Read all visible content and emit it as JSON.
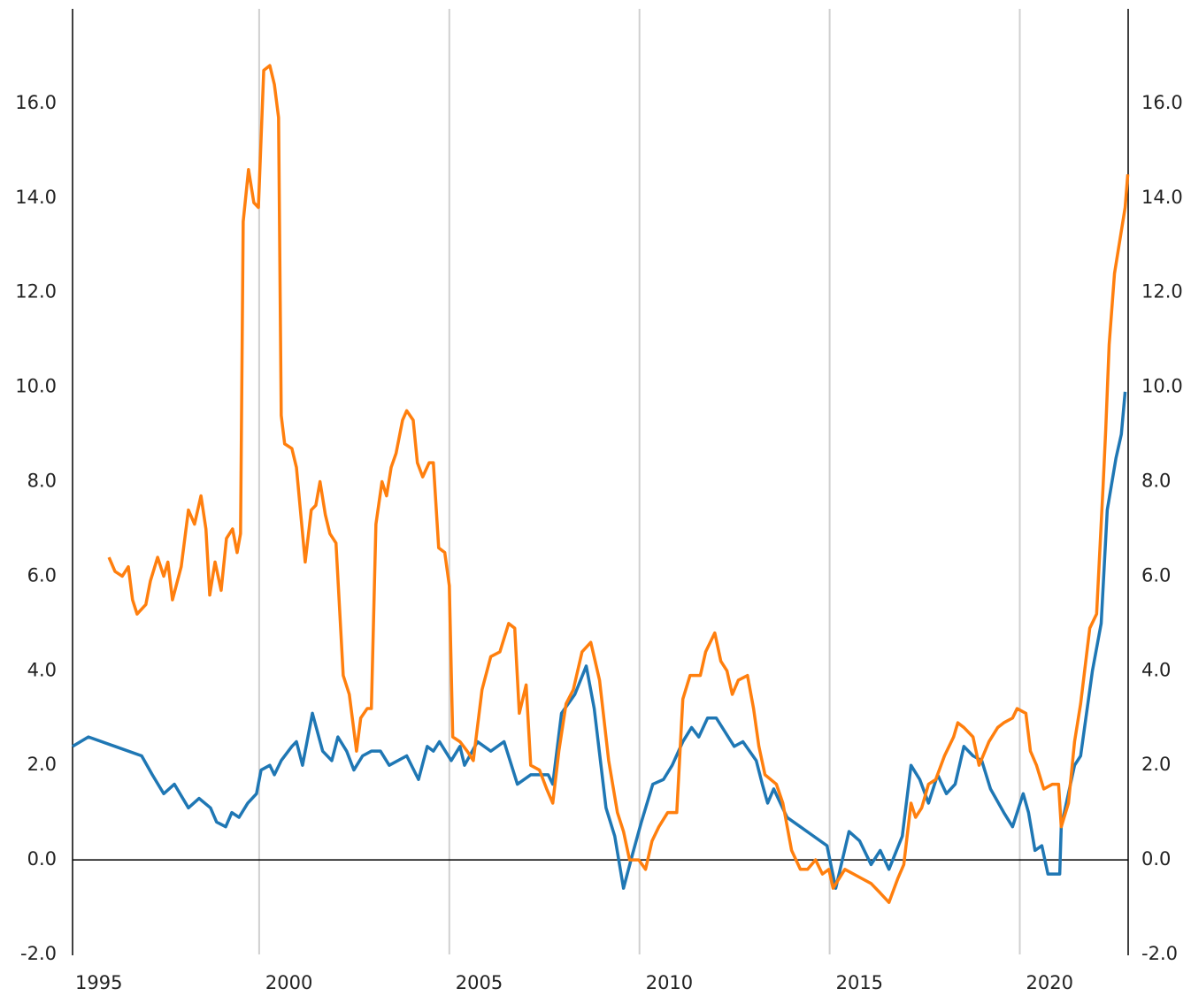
{
  "chart_data": {
    "type": "line",
    "xlim": [
      1995,
      2022.85
    ],
    "xticks": [
      1995,
      2000,
      2005,
      2010,
      2015,
      2020
    ],
    "ylim": [
      -2,
      18
    ],
    "yticks": [
      {
        "value": -2,
        "label": "-2.0"
      },
      {
        "value": 0,
        "label": "0.0"
      },
      {
        "value": 2,
        "label": "2.0"
      },
      {
        "value": 4,
        "label": "4.0"
      },
      {
        "value": 6,
        "label": "6.0"
      },
      {
        "value": 8,
        "label": "8.0"
      },
      {
        "value": 10,
        "label": "10.0"
      },
      {
        "value": 12,
        "label": "12.0"
      },
      {
        "value": 14,
        "label": "14.0"
      },
      {
        "value": 16,
        "label": "16.0"
      }
    ],
    "grid": true,
    "series": [
      {
        "color": "#1f77b4",
        "x": [
          1995.09,
          1995.51,
          1996.21,
          1996.91,
          1997.19,
          1997.49,
          1997.77,
          1998.14,
          1998.42,
          1998.72,
          1998.88,
          1999.12,
          1999.28,
          1999.47,
          1999.7,
          1999.93,
          2000.05,
          2000.28,
          2000.4,
          2000.58,
          2000.86,
          2000.98,
          2001.14,
          2001.4,
          2001.67,
          2001.91,
          2002.07,
          2002.3,
          2002.49,
          2002.72,
          2002.95,
          2003.19,
          2003.42,
          2003.88,
          2004.19,
          2004.42,
          2004.58,
          2004.74,
          2005.05,
          2005.28,
          2005.4,
          2005.74,
          2006.09,
          2006.44,
          2006.79,
          2007.14,
          2007.6,
          2007.72,
          2007.95,
          2008.3,
          2008.6,
          2008.81,
          2009.12,
          2009.35,
          2009.58,
          2009.81,
          2010.05,
          2010.35,
          2010.63,
          2010.86,
          2011.14,
          2011.37,
          2011.56,
          2011.79,
          2012.02,
          2012.49,
          2012.72,
          2013.07,
          2013.23,
          2013.37,
          2013.53,
          2013.88,
          2014.23,
          2014.58,
          2014.93,
          2015.16,
          2015.51,
          2015.79,
          2016.09,
          2016.33,
          2016.56,
          2016.91,
          2017.14,
          2017.37,
          2017.6,
          2017.84,
          2018.07,
          2018.3,
          2018.53,
          2018.77,
          2019.0,
          2019.23,
          2019.58,
          2019.81,
          2020.09,
          2020.23,
          2020.4,
          2020.58,
          2020.74,
          2021.05,
          2021.09,
          2021.44,
          2021.6,
          2021.91,
          2022.14,
          2022.3,
          2022.53,
          2022.67,
          2022.77
        ],
        "values": [
          2.4,
          2.6,
          2.4,
          2.2,
          1.8,
          1.4,
          1.6,
          1.1,
          1.3,
          1.1,
          0.8,
          0.7,
          1.0,
          0.9,
          1.2,
          1.4,
          1.9,
          2.0,
          1.8,
          2.1,
          2.4,
          2.5,
          2.0,
          3.1,
          2.3,
          2.1,
          2.6,
          2.3,
          1.9,
          2.2,
          2.3,
          2.3,
          2.0,
          2.2,
          1.7,
          2.4,
          2.3,
          2.5,
          2.1,
          2.4,
          2.0,
          2.5,
          2.3,
          2.5,
          1.6,
          1.8,
          1.8,
          1.6,
          3.1,
          3.5,
          4.1,
          3.2,
          1.1,
          0.5,
          -0.6,
          0.1,
          0.8,
          1.6,
          1.7,
          2.0,
          2.5,
          2.8,
          2.6,
          3.0,
          3.0,
          2.4,
          2.5,
          2.1,
          1.6,
          1.2,
          1.5,
          0.9,
          0.7,
          0.5,
          0.3,
          -0.6,
          0.6,
          0.4,
          -0.1,
          0.2,
          -0.2,
          0.5,
          2.0,
          1.7,
          1.2,
          1.8,
          1.4,
          1.6,
          2.4,
          2.2,
          2.1,
          1.5,
          1.0,
          0.7,
          1.4,
          1.0,
          0.2,
          0.3,
          -0.3,
          -0.3,
          0.7,
          2.0,
          2.2,
          4.0,
          5.0,
          7.4,
          8.5,
          9.0,
          9.9
        ]
      },
      {
        "color": "#ff7f0e",
        "x": [
          1996.05,
          1996.21,
          1996.4,
          1996.56,
          1996.67,
          1996.79,
          1997.02,
          1997.14,
          1997.33,
          1997.49,
          1997.6,
          1997.72,
          1997.95,
          1998.14,
          1998.3,
          1998.47,
          1998.6,
          1998.7,
          1998.84,
          1999.0,
          1999.14,
          1999.3,
          1999.42,
          1999.51,
          1999.58,
          1999.72,
          1999.86,
          1999.98,
          2000.12,
          2000.28,
          2000.4,
          2000.51,
          2000.58,
          2000.67,
          2000.86,
          2000.98,
          2001.21,
          2001.37,
          2001.49,
          2001.6,
          2001.74,
          2001.86,
          2002.02,
          2002.21,
          2002.37,
          2002.56,
          2002.67,
          2002.84,
          2002.95,
          2003.07,
          2003.23,
          2003.35,
          2003.47,
          2003.6,
          2003.77,
          2003.88,
          2004.05,
          2004.16,
          2004.3,
          2004.47,
          2004.58,
          2004.72,
          2004.88,
          2005.0,
          2005.09,
          2005.28,
          2005.47,
          2005.63,
          2005.86,
          2006.09,
          2006.33,
          2006.56,
          2006.72,
          2006.84,
          2007.02,
          2007.14,
          2007.37,
          2007.56,
          2007.72,
          2007.88,
          2008.07,
          2008.26,
          2008.49,
          2008.72,
          2008.95,
          2009.19,
          2009.42,
          2009.58,
          2009.74,
          2009.98,
          2010.16,
          2010.33,
          2010.51,
          2010.74,
          2010.98,
          2011.14,
          2011.33,
          2011.6,
          2011.74,
          2011.98,
          2012.14,
          2012.3,
          2012.44,
          2012.6,
          2012.84,
          2013.0,
          2013.14,
          2013.3,
          2013.6,
          2013.77,
          2014.0,
          2014.23,
          2014.42,
          2014.63,
          2014.81,
          2014.98,
          2015.09,
          2015.4,
          2015.63,
          2015.86,
          2016.09,
          2016.33,
          2016.56,
          2016.79,
          2016.95,
          2017.14,
          2017.26,
          2017.42,
          2017.6,
          2017.79,
          2018.02,
          2018.26,
          2018.37,
          2018.53,
          2018.77,
          2018.93,
          2019.19,
          2019.42,
          2019.58,
          2019.81,
          2019.93,
          2020.16,
          2020.28,
          2020.44,
          2020.63,
          2020.86,
          2021.02,
          2021.09,
          2021.28,
          2021.44,
          2021.6,
          2021.84,
          2022.02,
          2022.19,
          2022.26,
          2022.35,
          2022.49,
          2022.63,
          2022.77,
          2022.84
        ],
        "values": [
          6.4,
          6.1,
          6.0,
          6.2,
          5.5,
          5.2,
          5.4,
          5.9,
          6.4,
          6.0,
          6.3,
          5.5,
          6.2,
          7.4,
          7.1,
          7.7,
          7.0,
          5.6,
          6.3,
          5.7,
          6.8,
          7.0,
          6.5,
          6.9,
          13.5,
          14.6,
          13.9,
          13.8,
          16.7,
          16.8,
          16.4,
          15.7,
          9.4,
          8.8,
          8.7,
          8.3,
          6.3,
          7.4,
          7.5,
          8.0,
          7.3,
          6.9,
          6.7,
          3.9,
          3.5,
          2.3,
          3.0,
          3.2,
          3.2,
          7.1,
          8.0,
          7.7,
          8.3,
          8.6,
          9.3,
          9.5,
          9.3,
          8.4,
          8.1,
          8.4,
          8.4,
          6.6,
          6.5,
          5.8,
          2.6,
          2.5,
          2.3,
          2.1,
          3.6,
          4.3,
          4.4,
          5.0,
          4.9,
          3.1,
          3.7,
          2.0,
          1.9,
          1.5,
          1.2,
          2.3,
          3.3,
          3.6,
          4.4,
          4.6,
          3.8,
          2.1,
          1.0,
          0.6,
          0.0,
          0.0,
          -0.2,
          0.4,
          0.7,
          1.0,
          1.0,
          3.4,
          3.9,
          3.9,
          4.4,
          4.8,
          4.2,
          4.0,
          3.5,
          3.8,
          3.9,
          3.2,
          2.4,
          1.8,
          1.6,
          1.2,
          0.2,
          -0.2,
          -0.2,
          0.0,
          -0.3,
          -0.2,
          -0.6,
          -0.2,
          -0.3,
          -0.4,
          -0.5,
          -0.7,
          -0.9,
          -0.4,
          -0.1,
          1.2,
          0.9,
          1.1,
          1.6,
          1.7,
          2.2,
          2.6,
          2.9,
          2.8,
          2.6,
          2.0,
          2.5,
          2.8,
          2.9,
          3.0,
          3.2,
          3.1,
          2.3,
          2.0,
          1.5,
          1.6,
          1.6,
          0.7,
          1.2,
          2.5,
          3.3,
          4.9,
          5.2,
          7.9,
          9.1,
          10.9,
          12.4,
          13.1,
          13.8,
          14.5
        ]
      }
    ]
  }
}
